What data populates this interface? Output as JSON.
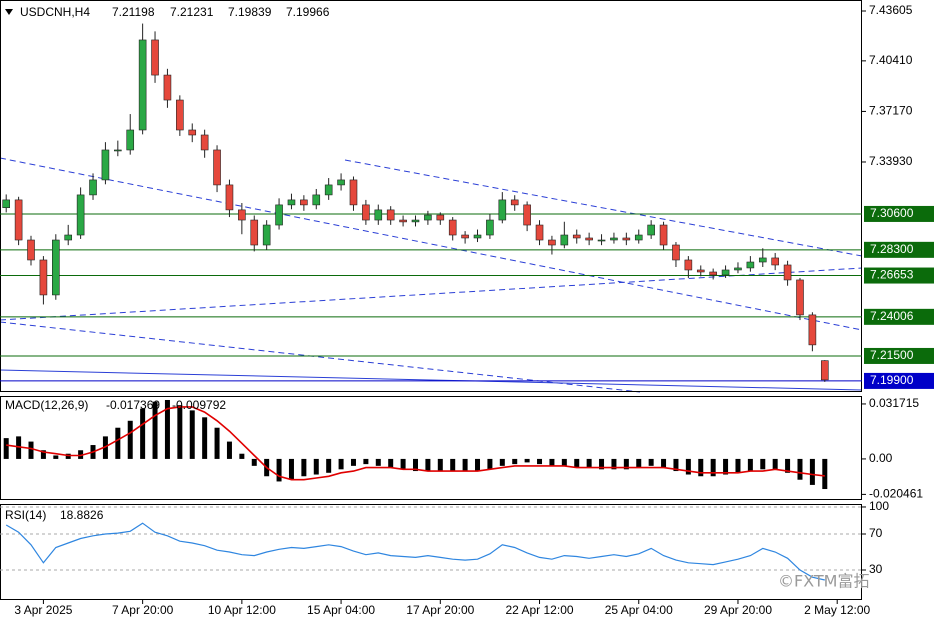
{
  "chart_data": [
    {
      "type": "candlestick",
      "title": "USDCNH,H4",
      "up_color": "#2aa845",
      "down_color": "#e5483c",
      "open": [
        7.31,
        7.315,
        7.2893,
        7.2765,
        7.2541,
        7.2893,
        7.2925,
        7.3182,
        7.3278,
        7.347,
        7.347,
        7.3598,
        7.4175,
        7.395,
        7.379,
        7.3598,
        7.3566,
        7.347,
        7.3246,
        7.3086,
        7.3021,
        7.2861,
        7.2989,
        7.3118,
        7.315,
        7.3118,
        7.3182,
        7.3246,
        7.3278,
        7.3118,
        7.3021,
        7.3086,
        7.3021,
        7.3009,
        7.3021,
        7.3053,
        7.3021,
        7.2925,
        7.2906,
        7.2925,
        7.3021,
        7.315,
        7.3118,
        7.2989,
        7.2893,
        7.2861,
        7.2925,
        7.2906,
        7.2893,
        7.2893,
        7.2906,
        7.2893,
        7.2925,
        7.2989,
        7.2861,
        7.2765,
        7.2701,
        7.2688,
        7.2669,
        7.2701,
        7.2714,
        7.2752,
        7.2778,
        7.2733,
        7.2637,
        7.2413,
        7.21198
      ],
      "high": [
        7.3185,
        7.317,
        7.292,
        7.279,
        7.293,
        7.299,
        7.323,
        7.332,
        7.352,
        7.353,
        7.37,
        7.428,
        7.423,
        7.399,
        7.382,
        7.364,
        7.36,
        7.35,
        7.328,
        7.313,
        7.305,
        7.302,
        7.316,
        7.319,
        7.318,
        7.322,
        7.329,
        7.332,
        7.33,
        7.315,
        7.312,
        7.311,
        7.305,
        7.305,
        7.308,
        7.307,
        7.304,
        7.295,
        7.296,
        7.306,
        7.32,
        7.318,
        7.314,
        7.302,
        7.292,
        7.301,
        7.296,
        7.294,
        7.293,
        7.294,
        7.294,
        7.296,
        7.302,
        7.301,
        7.288,
        7.279,
        7.273,
        7.271,
        7.273,
        7.275,
        7.279,
        7.284,
        7.281,
        7.276,
        7.265,
        7.243,
        7.21231
      ],
      "low": [
        7.307,
        7.286,
        7.273,
        7.248,
        7.251,
        7.286,
        7.29,
        7.315,
        7.325,
        7.343,
        7.344,
        7.357,
        7.39,
        7.374,
        7.356,
        7.352,
        7.342,
        7.32,
        7.304,
        7.293,
        7.282,
        7.283,
        7.296,
        7.309,
        7.308,
        7.309,
        7.315,
        7.321,
        7.308,
        7.299,
        7.299,
        7.299,
        7.298,
        7.298,
        7.299,
        7.299,
        7.289,
        7.287,
        7.288,
        7.29,
        7.3,
        7.308,
        7.295,
        7.286,
        7.28,
        7.284,
        7.287,
        7.286,
        7.286,
        7.287,
        7.286,
        7.287,
        7.29,
        7.283,
        7.272,
        7.265,
        7.266,
        7.264,
        7.265,
        7.268,
        7.269,
        7.272,
        7.27,
        7.26,
        7.238,
        7.218,
        7.19839
      ],
      "close": [
        7.315,
        7.2893,
        7.2765,
        7.2541,
        7.2893,
        7.2925,
        7.3182,
        7.3278,
        7.347,
        7.347,
        7.3598,
        7.4175,
        7.395,
        7.379,
        7.3598,
        7.3566,
        7.347,
        7.3246,
        7.3086,
        7.3021,
        7.2861,
        7.2989,
        7.3118,
        7.315,
        7.3118,
        7.3182,
        7.3246,
        7.3278,
        7.3118,
        7.3021,
        7.3086,
        7.3021,
        7.3009,
        7.3021,
        7.3053,
        7.3021,
        7.2925,
        7.2906,
        7.2925,
        7.3021,
        7.315,
        7.3118,
        7.2989,
        7.2893,
        7.2861,
        7.2925,
        7.2906,
        7.2893,
        7.2893,
        7.2906,
        7.2893,
        7.2925,
        7.2989,
        7.2861,
        7.2765,
        7.2701,
        7.2688,
        7.2669,
        7.2701,
        7.2714,
        7.2752,
        7.2778,
        7.2733,
        7.2637,
        7.2413,
        7.2221,
        7.19966
      ],
      "ylim": [
        7.1919,
        7.4431
      ],
      "yticks": [
        7.43605,
        {
          "value": 7.4041,
          "label": "7.40410"
        },
        {
          "value": 7.3717,
          "label": "7.37170"
        },
        {
          "value": 7.3393,
          "label": "7.33930"
        }
      ],
      "levels": [
        {
          "value": 7.306,
          "label": "7.30600",
          "color": "#0b6b0b"
        },
        {
          "value": 7.283,
          "label": "7.28300",
          "color": "#0b6b0b"
        },
        {
          "value": 7.26653,
          "label": "7.26653",
          "color": "#0b6b0b"
        },
        {
          "value": 7.24006,
          "label": "7.24006",
          "color": "#0b6b0b"
        },
        {
          "value": 7.215,
          "label": "7.21500",
          "color": "#0b6b0b"
        },
        {
          "value": 7.199,
          "label": "7.19900",
          "color": "#0000c8"
        }
      ],
      "xlim": [
        -0.5,
        69
      ],
      "xticks": [
        {
          "value": 3,
          "label": "3 Apr 2025"
        },
        {
          "value": 11,
          "label": "7 Apr 20:00"
        },
        {
          "value": 19,
          "label": "10 Apr 12:00"
        },
        {
          "value": 27,
          "label": "15 Apr 04:00"
        },
        {
          "value": 35,
          "label": "17 Apr 20:00"
        },
        {
          "value": 43,
          "label": "22 Apr 12:00"
        },
        {
          "value": 51,
          "label": "25 Apr 04:00"
        },
        {
          "value": 59,
          "label": "29 Apr 20:00"
        },
        {
          "value": 67,
          "label": "2 May 12:00"
        }
      ]
    },
    {
      "type": "macd",
      "title": "MACD(12,26,9)",
      "histogram": {
        "color": "#000000",
        "values": [
          0.012,
          0.013,
          0.01,
          0.005,
          0.002,
          0.003,
          0.005,
          0.008,
          0.013,
          0.018,
          0.022,
          0.029,
          0.033,
          0.034,
          0.031,
          0.028,
          0.024,
          0.018,
          0.01,
          0.003,
          -0.004,
          -0.01,
          -0.013,
          -0.012,
          -0.01,
          -0.009,
          -0.008,
          -0.006,
          -0.004,
          -0.003,
          -0.004,
          -0.005,
          -0.006,
          -0.007,
          -0.007,
          -0.007,
          -0.007,
          -0.007,
          -0.007,
          -0.006,
          -0.004,
          -0.003,
          -0.002,
          -0.003,
          -0.004,
          -0.004,
          -0.005,
          -0.005,
          -0.006,
          -0.006,
          -0.006,
          -0.005,
          -0.004,
          -0.005,
          -0.007,
          -0.009,
          -0.01,
          -0.01,
          -0.009,
          -0.008,
          -0.007,
          -0.006,
          -0.006,
          -0.008,
          -0.012,
          -0.015,
          -0.017369
        ]
      },
      "signal": {
        "color": "#e00000",
        "values": [
          0.008,
          0.007,
          0.006,
          0.004,
          0.003,
          0.002,
          0.002,
          0.004,
          0.007,
          0.011,
          0.015,
          0.02,
          0.025,
          0.029,
          0.03,
          0.03,
          0.027,
          0.022,
          0.016,
          0.009,
          0.002,
          -0.005,
          -0.01,
          -0.012,
          -0.012,
          -0.011,
          -0.01,
          -0.008,
          -0.007,
          -0.005,
          -0.005,
          -0.005,
          -0.006,
          -0.006,
          -0.007,
          -0.007,
          -0.007,
          -0.007,
          -0.007,
          -0.006,
          -0.005,
          -0.004,
          -0.004,
          -0.004,
          -0.004,
          -0.004,
          -0.005,
          -0.005,
          -0.005,
          -0.005,
          -0.005,
          -0.005,
          -0.005,
          -0.005,
          -0.006,
          -0.007,
          -0.008,
          -0.008,
          -0.008,
          -0.008,
          -0.007,
          -0.007,
          -0.006,
          -0.007,
          -0.008,
          -0.009,
          -0.009792
        ]
      },
      "ylim": [
        -0.0237,
        0.0363
      ],
      "yticks": [
        0.031715,
        {
          "value": 0,
          "label": "0.00"
        },
        -0.020461
      ]
    },
    {
      "type": "line",
      "title": "RSI(14)",
      "color": "#2f86e0",
      "values": [
        80,
        72,
        58,
        38,
        55,
        60,
        65,
        68,
        70,
        71,
        73,
        82,
        72,
        68,
        62,
        60,
        57,
        52,
        50,
        47,
        46,
        50,
        53,
        55,
        54,
        56,
        58,
        56,
        51,
        47,
        49,
        46,
        45,
        44,
        46,
        44,
        42,
        41,
        42,
        48,
        58,
        55,
        49,
        44,
        42,
        46,
        45,
        43,
        45,
        47,
        45,
        48,
        54,
        46,
        41,
        38,
        37,
        36,
        39,
        42,
        46,
        54,
        50,
        43,
        30,
        22,
        18.8826
      ],
      "ylim": [
        -3.3,
        103.3
      ],
      "yticks": [
        100,
        70,
        30
      ],
      "grid": true
    }
  ],
  "watermark": "©FXTM富拓"
}
